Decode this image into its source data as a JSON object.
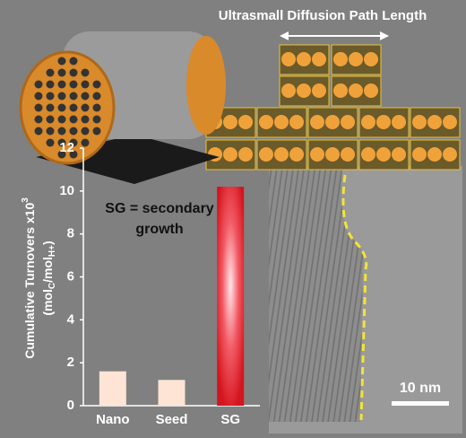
{
  "chart_data": {
    "type": "bar",
    "title": "Ultrasmall Diffusion Path Length",
    "y_label": {
      "line1": [
        "Cumulative Turnovers x10",
        "3"
      ],
      "line2": [
        "(mol",
        "C",
        "/mol",
        "H+",
        ")"
      ]
    },
    "annotation": [
      "SG = secondary",
      "growth"
    ],
    "scale_bar": "10 nm",
    "categories": [
      "Nano",
      "Seed",
      "SG"
    ],
    "values": [
      1.6,
      1.2,
      10.2
    ],
    "colors": [
      "#fde4d4",
      "#fde4d4",
      "#e8202a"
    ],
    "ylim": [
      0,
      12
    ],
    "yticks": [
      0,
      2,
      4,
      6,
      8,
      10,
      12
    ]
  }
}
